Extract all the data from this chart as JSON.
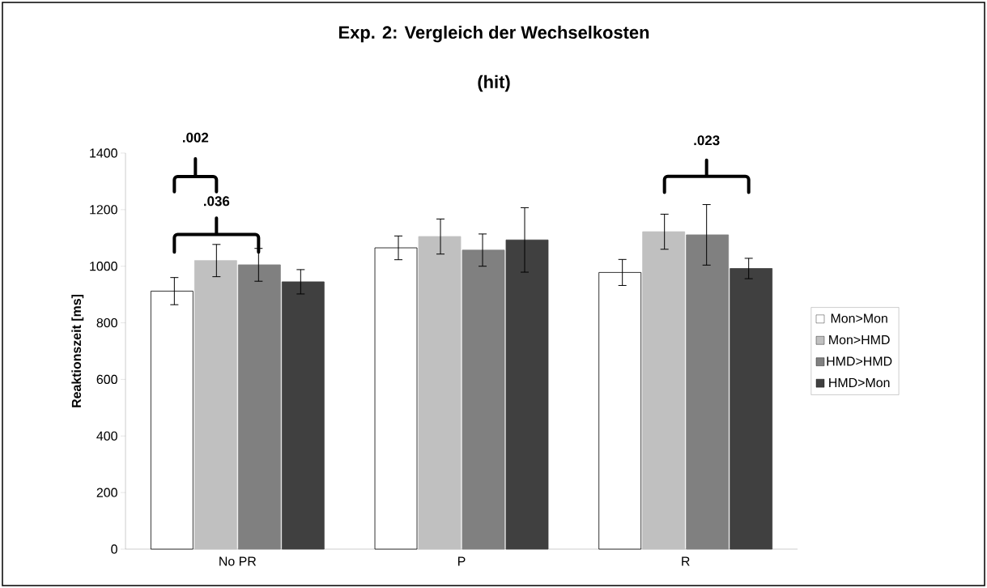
{
  "chart_data": {
    "type": "bar",
    "title": "Exp. 2: Vergleich der Wechselkosten",
    "subtitle": "(hit)",
    "ylabel": "Reaktionszeit [ms]",
    "categories": [
      "No PR",
      "P",
      "R"
    ],
    "series": [
      {
        "name": "Mon>Mon",
        "color": "#ffffff",
        "values": [
          912,
          1065,
          978
        ],
        "errors": [
          48,
          42,
          46
        ]
      },
      {
        "name": "Mon>HMD",
        "color": "#c0c0c0",
        "values": [
          1020,
          1105,
          1122
        ],
        "errors": [
          57,
          62,
          62
        ]
      },
      {
        "name": "HMD>HMD",
        "color": "#808080",
        "values": [
          1005,
          1057,
          1111
        ],
        "errors": [
          58,
          57,
          107
        ]
      },
      {
        "name": "HMD>Mon",
        "color": "#404040",
        "values": [
          945,
          1093,
          992
        ],
        "errors": [
          43,
          114,
          36
        ]
      }
    ],
    "ylim": [
      0,
      1400
    ],
    "yticks": [
      0,
      200,
      400,
      600,
      800,
      1000,
      1200,
      1400
    ],
    "legend": "right",
    "grid": false,
    "annotations": [
      ".002",
      ".036",
      ".023"
    ]
  }
}
